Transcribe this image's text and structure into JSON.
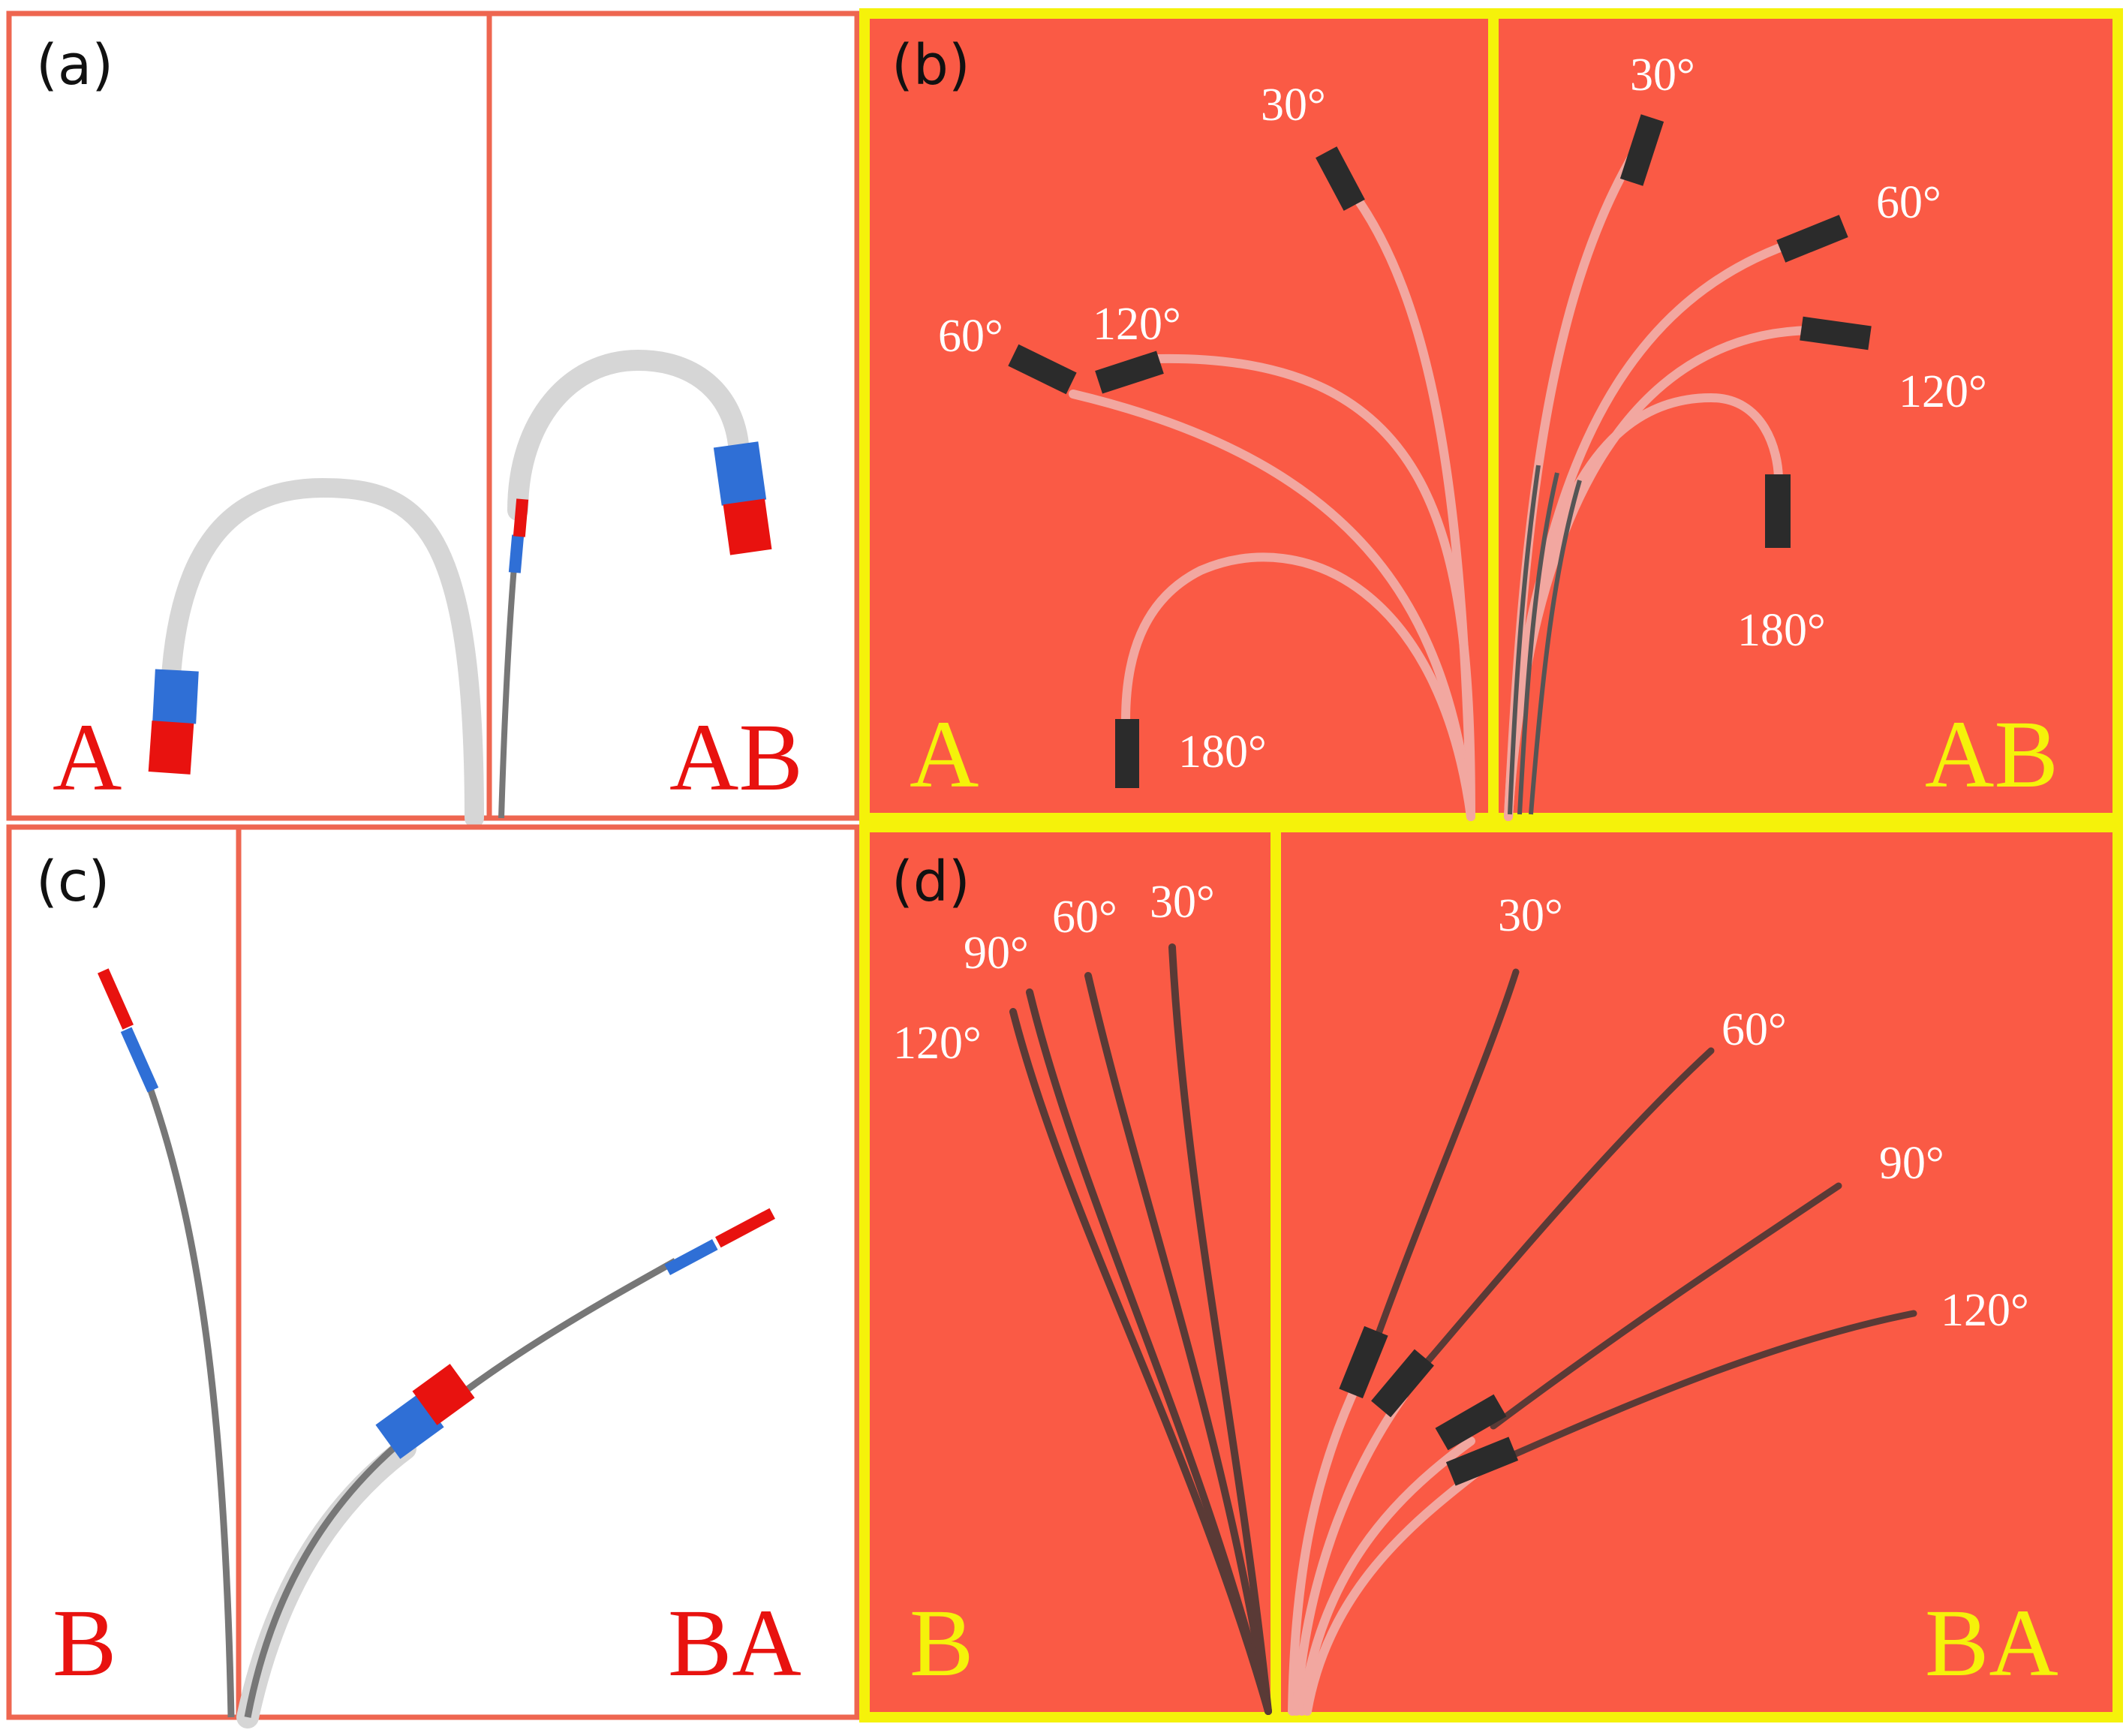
{
  "panels": {
    "a": {
      "label": "(a)",
      "left_segment_label": "A",
      "right_segment_label": "AB"
    },
    "b": {
      "label": "(b)",
      "left_segment_label": "A",
      "right_segment_label": "AB",
      "left_angles": [
        "30°",
        "60°",
        "120°",
        "180°"
      ],
      "right_angles": [
        "30°",
        "60°",
        "120°",
        "180°"
      ]
    },
    "c": {
      "label": "(c)",
      "left_segment_label": "B",
      "right_segment_label": "BA"
    },
    "d": {
      "label": "(d)",
      "left_segment_label": "B",
      "right_segment_label": "BA",
      "left_angles": [
        "30°",
        "60°",
        "90°",
        "120°"
      ],
      "right_angles": [
        "30°",
        "60°",
        "90°",
        "120°"
      ]
    }
  },
  "colors": {
    "sim_frame": "#ee6650",
    "photo_frame": "#f5f20a",
    "photo_background": "#fa5a45",
    "sim_label": "#e8120f",
    "photo_label": "#f5f20a",
    "magnet_red": "#e8120f",
    "magnet_blue": "#2f6fd6",
    "catheter_gray": "#d6d6d6",
    "catheter_dark": "#777777"
  }
}
